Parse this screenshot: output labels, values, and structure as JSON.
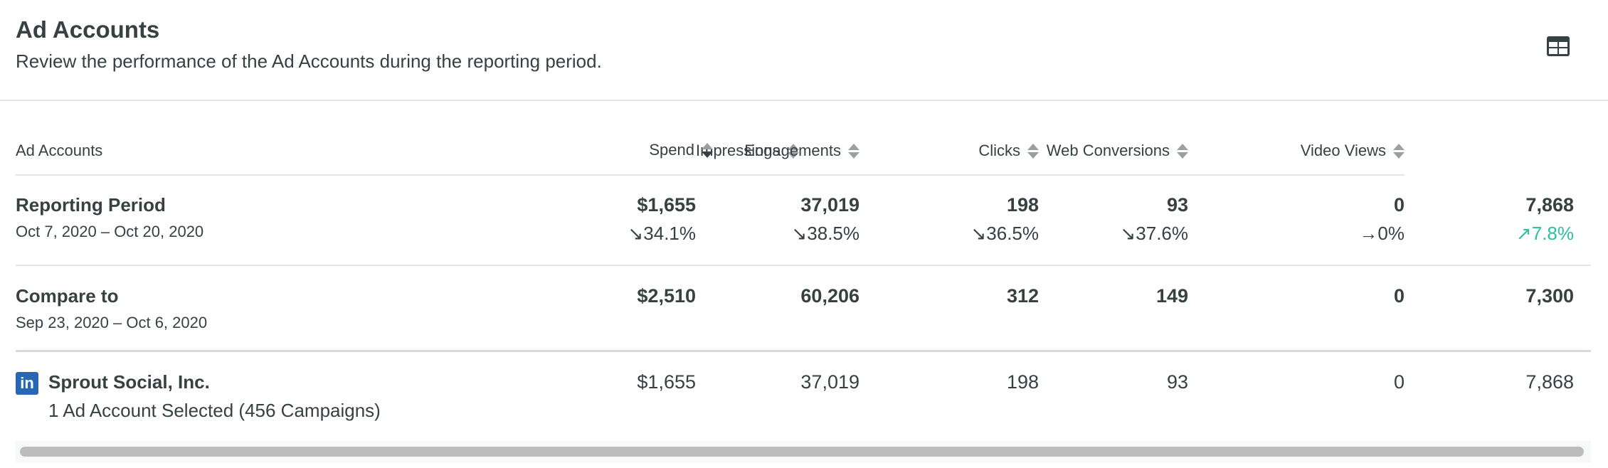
{
  "header": {
    "title": "Ad Accounts",
    "subtitle": "Review the performance of the Ad Accounts during the reporting period.",
    "view_icon": "table-grid-icon"
  },
  "table": {
    "columns": [
      {
        "label": "Ad Accounts",
        "sortable": false
      },
      {
        "label": "Spend",
        "sortable": true,
        "sorted": "desc"
      },
      {
        "label": "Impressions",
        "sortable": true
      },
      {
        "label": "Engagements",
        "sortable": true
      },
      {
        "label": "Clicks",
        "sortable": true
      },
      {
        "label": "Web Conversions",
        "sortable": true
      },
      {
        "label": "Video Views",
        "sortable": true
      }
    ],
    "reporting": {
      "label": "Reporting Period",
      "dates": "Oct 7, 2020 – Oct 20, 2020",
      "values": [
        "$1,655",
        "37,019",
        "198",
        "93",
        "0",
        "7,868"
      ],
      "changes": [
        "↘34.1%",
        "↘38.5%",
        "↘36.5%",
        "↘37.6%",
        "→0%",
        "↗7.8%"
      ],
      "change_colors": [
        "#364141",
        "#364141",
        "#364141",
        "#364141",
        "#364141",
        "#2fbf9c"
      ]
    },
    "compare": {
      "label": "Compare to",
      "dates": "Sep 23, 2020 – Oct 6, 2020",
      "values": [
        "$2,510",
        "60,206",
        "312",
        "149",
        "0",
        "7,300"
      ]
    },
    "accounts": [
      {
        "network_icon": "linkedin-icon",
        "logo_text": "in",
        "name": "Sprout Social, Inc.",
        "detail": "1 Ad Account Selected (456 Campaigns)",
        "values": [
          "$1,655",
          "37,019",
          "198",
          "93",
          "0",
          "7,868"
        ]
      }
    ]
  },
  "colors": {
    "text": "#364141",
    "positive": "#2fbf9c",
    "linkedin": "#2867b2",
    "divider": "#e3e6e6"
  }
}
